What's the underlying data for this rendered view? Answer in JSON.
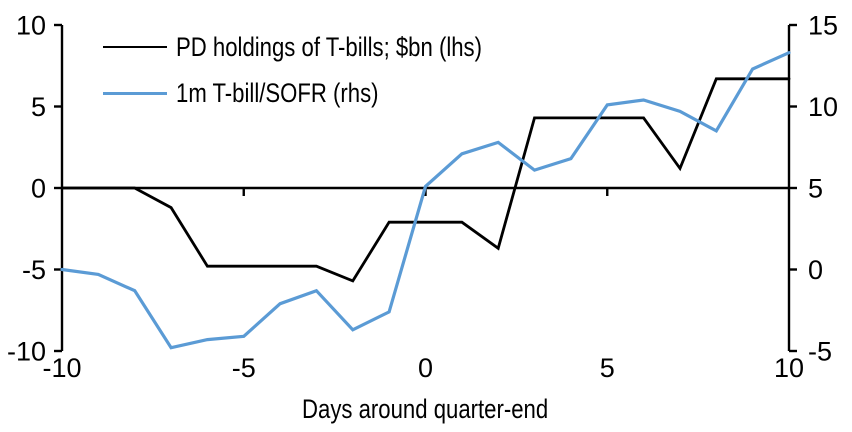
{
  "chart_data": {
    "type": "line",
    "title": "",
    "xlabel": "Days around quarter-end",
    "ylabel_left": "",
    "ylabel_right": "",
    "grid": false,
    "background": "#ffffff",
    "axis_color": "#000000",
    "legend_position": "top-left",
    "x": [
      -10,
      -9,
      -8,
      -7,
      -6,
      -5,
      -4,
      -3,
      -2,
      -1,
      0,
      1,
      2,
      3,
      4,
      5,
      6,
      7,
      8,
      9,
      10
    ],
    "series": [
      {
        "name": "PD holdings of T-bills; $bn (lhs)",
        "axis": "left",
        "color": "#000000",
        "values": [
          0,
          0,
          0,
          -1.2,
          -4.8,
          -4.8,
          -4.8,
          -4.8,
          -5.7,
          -2.1,
          -2.1,
          -2.1,
          -3.7,
          4.3,
          4.3,
          4.3,
          4.3,
          1.2,
          6.7,
          6.7,
          6.7
        ]
      },
      {
        "name": "1m T-bill/SOFR (rhs)",
        "axis": "right",
        "color": "#5B9BD5",
        "values": [
          0,
          -0.3,
          -1.3,
          -4.8,
          -4.3,
          -4.1,
          -2.1,
          -1.3,
          -3.7,
          -2.6,
          5.1,
          7.1,
          7.8,
          6.1,
          6.8,
          10.1,
          10.4,
          9.7,
          8.5,
          12.3,
          13.3
        ]
      }
    ],
    "left_axis": {
      "range": [
        -10,
        10
      ],
      "ticks": [
        10,
        5,
        0,
        -5,
        -10
      ]
    },
    "right_axis": {
      "range": [
        -5,
        15
      ],
      "ticks": [
        15,
        10,
        5,
        0,
        -5
      ]
    },
    "x_axis": {
      "range": [
        -10,
        10
      ],
      "ticks": [
        -10,
        -5,
        0,
        5,
        10
      ],
      "tick_marks_on_zero_line": [
        -5,
        0,
        5
      ]
    }
  }
}
